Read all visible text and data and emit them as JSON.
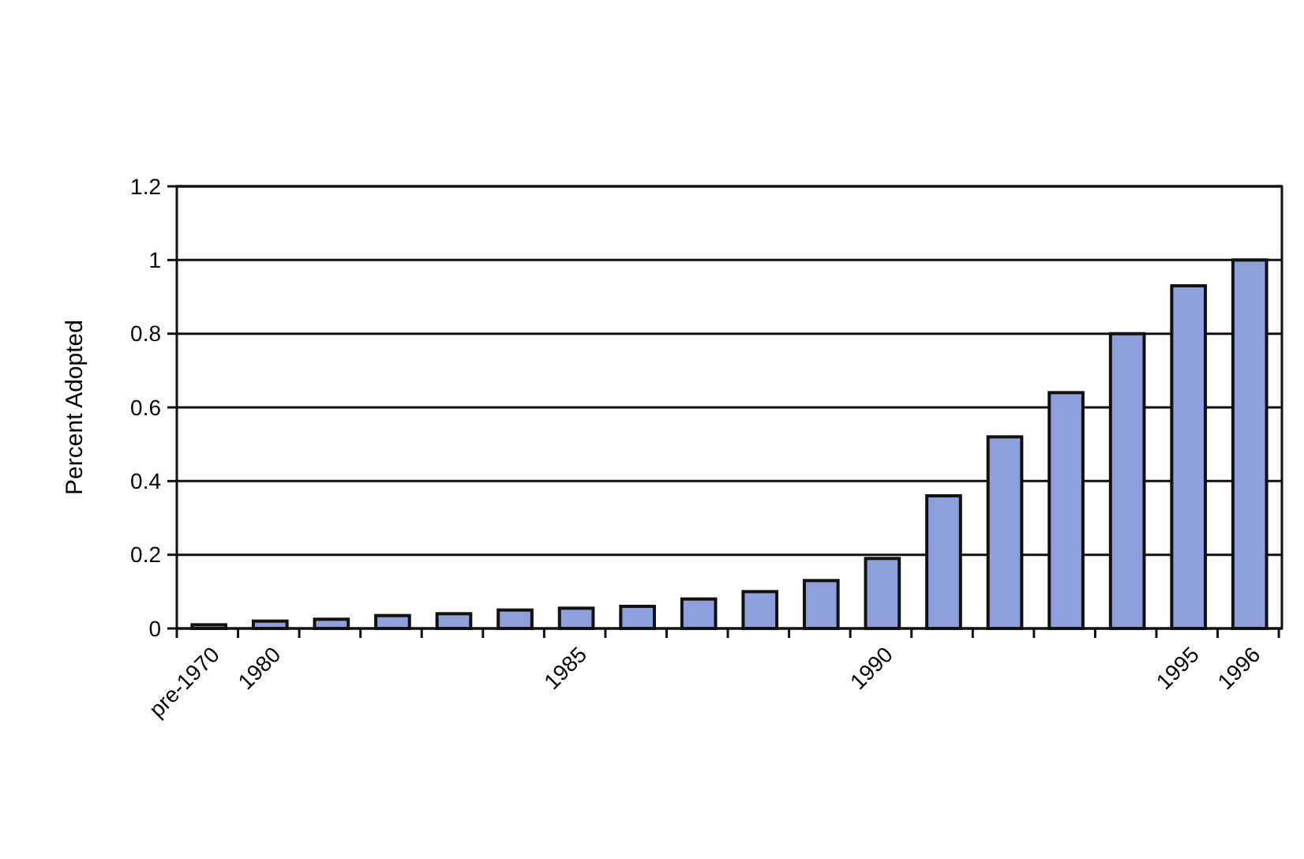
{
  "chart_data": {
    "type": "bar",
    "ylabel": "Percent Adopted",
    "categories": [
      "pre-1970",
      "1980",
      null,
      null,
      null,
      null,
      "1985",
      null,
      null,
      null,
      null,
      "1990",
      null,
      null,
      null,
      null,
      "1995",
      "1996"
    ],
    "values": [
      0.01,
      0.02,
      0.025,
      0.035,
      0.04,
      0.05,
      0.055,
      0.06,
      0.08,
      0.1,
      0.13,
      0.19,
      0.36,
      0.52,
      0.64,
      0.8,
      0.93,
      1.0
    ],
    "color": "#8e9fde",
    "ylim": [
      0,
      1.2
    ],
    "yticks": [
      0,
      0.2,
      0.4,
      0.6,
      0.8,
      1,
      1.2
    ],
    "grid": "y"
  }
}
